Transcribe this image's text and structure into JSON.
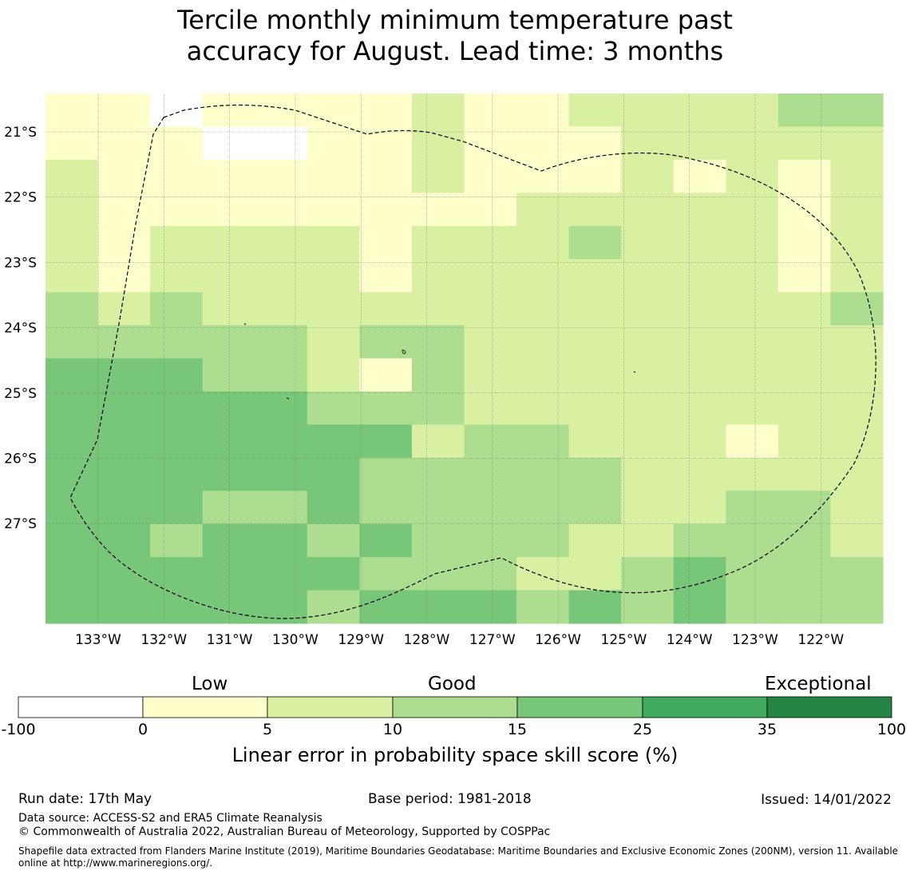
{
  "title": {
    "line1": "Tercile monthly minimum temperature past",
    "line2": "accuracy for August. Lead time: 3 months"
  },
  "map": {
    "lon_labels": [
      "133°W",
      "132°W",
      "131°W",
      "130°W",
      "129°W",
      "128°W",
      "127°W",
      "126°W",
      "125°W",
      "124°W",
      "123°W",
      "122°W"
    ],
    "lat_labels": [
      "21°S",
      "22°S",
      "23°S",
      "24°S",
      "25°S",
      "26°S",
      "27°S"
    ],
    "grid_lons": [
      -133,
      -132,
      -131,
      -130,
      -129,
      -128,
      -127,
      -126,
      -125,
      -124,
      -123,
      -122
    ],
    "grid_lats": [
      -21,
      -22,
      -23,
      -24,
      -25,
      -26,
      -27
    ],
    "cell_columns": 16,
    "cell_rows": 16,
    "cell_classes": [
      [
        1,
        1,
        0,
        1,
        1,
        1,
        1,
        2,
        1,
        1,
        2,
        2,
        2,
        2,
        3,
        3
      ],
      [
        1,
        1,
        1,
        0,
        0,
        1,
        1,
        2,
        1,
        1,
        1,
        2,
        2,
        2,
        2,
        2
      ],
      [
        2,
        1,
        1,
        1,
        1,
        1,
        1,
        2,
        1,
        1,
        1,
        2,
        1,
        2,
        1,
        2
      ],
      [
        2,
        1,
        1,
        1,
        1,
        1,
        1,
        1,
        1,
        2,
        2,
        2,
        2,
        2,
        1,
        2
      ],
      [
        2,
        1,
        2,
        2,
        2,
        2,
        1,
        2,
        2,
        2,
        3,
        2,
        2,
        2,
        1,
        2
      ],
      [
        2,
        1,
        2,
        2,
        2,
        2,
        1,
        2,
        2,
        2,
        2,
        2,
        2,
        2,
        1,
        2
      ],
      [
        3,
        2,
        3,
        2,
        2,
        2,
        2,
        2,
        2,
        2,
        2,
        2,
        2,
        2,
        2,
        3
      ],
      [
        3,
        3,
        3,
        3,
        3,
        2,
        3,
        3,
        2,
        2,
        2,
        2,
        2,
        2,
        2,
        2
      ],
      [
        4,
        4,
        4,
        3,
        3,
        2,
        1,
        3,
        2,
        2,
        2,
        2,
        2,
        2,
        2,
        2
      ],
      [
        4,
        4,
        4,
        4,
        4,
        3,
        3,
        3,
        2,
        2,
        2,
        2,
        2,
        2,
        2,
        2
      ],
      [
        4,
        4,
        4,
        4,
        4,
        4,
        4,
        2,
        3,
        3,
        2,
        2,
        2,
        1,
        2,
        2
      ],
      [
        4,
        4,
        4,
        4,
        4,
        4,
        3,
        3,
        3,
        3,
        3,
        2,
        2,
        2,
        2,
        2
      ],
      [
        4,
        4,
        4,
        3,
        3,
        4,
        3,
        3,
        3,
        3,
        3,
        2,
        2,
        3,
        3,
        2
      ],
      [
        4,
        4,
        3,
        4,
        4,
        3,
        4,
        3,
        3,
        3,
        2,
        2,
        3,
        3,
        3,
        2
      ],
      [
        4,
        4,
        4,
        4,
        4,
        4,
        3,
        3,
        3,
        2,
        2,
        3,
        4,
        3,
        3,
        3
      ],
      [
        4,
        4,
        4,
        4,
        4,
        3,
        4,
        4,
        4,
        3,
        4,
        3,
        4,
        3,
        3,
        3
      ]
    ],
    "colors": [
      "#ffffff",
      "#ffffcc",
      "#d9f0a3",
      "#addd8e",
      "#78c679",
      "#41ab5d",
      "#238443"
    ]
  },
  "colorbar": {
    "category_labels": [
      "Low",
      "Good",
      "Exceptional"
    ],
    "ticks": [
      "-100",
      "0",
      "5",
      "10",
      "15",
      "25",
      "35",
      "100"
    ],
    "title": "Linear error in probability space skill score (%)"
  },
  "footer": {
    "run_date": "Run date: 17th May",
    "base_period": "Base period: 1981-2018",
    "issued": "Issued: 14/01/2022",
    "data_source": "Data source: ACCESS-S2 and ERA5 Climate Reanalysis",
    "copyright": "© Commonwealth of Australia 2022, Australian Bureau of Meteorology, Supported by COSPPac",
    "shapefile_line1": "Shapefile data extracted from Flanders Marine Institute (2019), Maritime Boundaries Geodatabase: Maritime Boundaries and Exclusive Economic Zones (200NM), version 11. Available",
    "shapefile_line2": "online at http://www.marineregions.org/."
  }
}
